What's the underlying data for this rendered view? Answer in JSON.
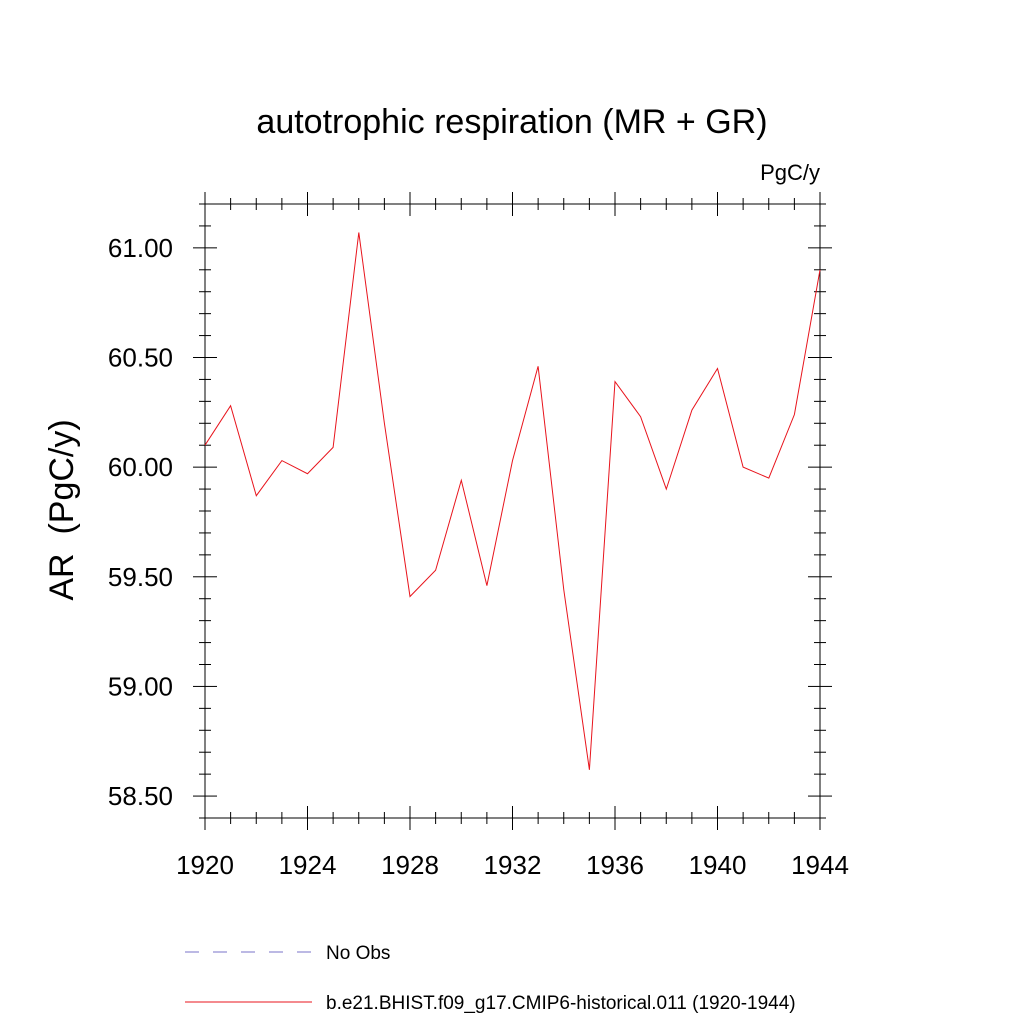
{
  "chart_data": {
    "type": "line",
    "title": "autotrophic respiration (MR + GR)",
    "units": "PgC/y",
    "ylabel": "AR  (PgC/y)",
    "xlabel": "",
    "xlim": [
      1920,
      1944
    ],
    "ylim": [
      58.4,
      61.2
    ],
    "x_ticks": [
      1920,
      1924,
      1928,
      1932,
      1936,
      1940,
      1944
    ],
    "y_ticks": [
      58.5,
      59.0,
      59.5,
      60.0,
      60.5,
      61.0
    ],
    "x_tick_labels": [
      "1920",
      "1924",
      "1928",
      "1932",
      "1936",
      "1940",
      "1944"
    ],
    "y_tick_labels": [
      "58.50",
      "59.00",
      "59.50",
      "60.00",
      "60.50",
      "61.00"
    ],
    "grid": false,
    "legend_position": "bottom",
    "series": [
      {
        "name": "b.e21.BHIST.f09_g17.CMIP6-historical.011 (1920-1944)",
        "color": "#e8141c",
        "style": "solid",
        "x": [
          1920,
          1921,
          1922,
          1923,
          1924,
          1925,
          1926,
          1927,
          1928,
          1929,
          1930,
          1931,
          1932,
          1933,
          1934,
          1935,
          1936,
          1937,
          1938,
          1939,
          1940,
          1941,
          1942,
          1943,
          1944
        ],
        "y": [
          60.1,
          60.28,
          59.87,
          60.03,
          59.97,
          60.09,
          61.07,
          60.2,
          59.41,
          59.53,
          59.94,
          59.46,
          60.03,
          60.46,
          59.44,
          58.62,
          60.39,
          60.23,
          59.9,
          60.26,
          60.45,
          60.0,
          59.95,
          60.24,
          60.9
        ]
      }
    ],
    "legend": [
      {
        "label": "No Obs",
        "color": "#7a73c8",
        "style": "dashed"
      },
      {
        "label": "b.e21.BHIST.f09_g17.CMIP6-historical.011 (1920-1944)",
        "color": "#e8141c",
        "style": "solid"
      }
    ]
  }
}
